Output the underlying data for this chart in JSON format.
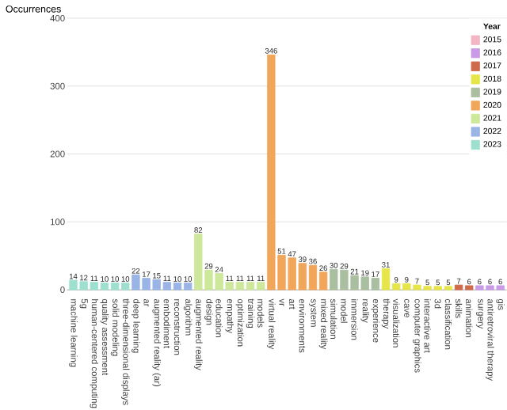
{
  "chart_data": {
    "type": "bar",
    "ylabel": "Occurrences",
    "legend_title": "Year",
    "categories": [
      "machine learning",
      "5g",
      "human-centered computing",
      "quality assessment",
      "solid modeling",
      "three-dimensional displays",
      "deep learning",
      "ar",
      "augmented reality (ar)",
      "embodiment",
      "reconstruction",
      "algorithm",
      "augmented reality",
      "design",
      "education",
      "empathy",
      "optimization",
      "training",
      "models",
      "virtual reality",
      "vr",
      "art",
      "environments",
      "system",
      "mixed reality",
      "simulation",
      "model",
      "immersion",
      "reality",
      "experience",
      "therapy",
      "visualization",
      "cave",
      "computer graphics",
      "interactive art",
      "3d",
      "classification",
      "skills",
      "animation",
      "surgery",
      "antiretroviral therapy",
      "gis"
    ],
    "series": [
      {
        "name": "2015",
        "color": "#f4b6c2",
        "values": [
          null,
          null,
          null,
          null,
          null,
          null,
          null,
          null,
          null,
          null,
          null,
          null,
          null,
          null,
          null,
          null,
          null,
          null,
          null,
          null,
          null,
          null,
          null,
          null,
          null,
          null,
          null,
          null,
          null,
          null,
          null,
          null,
          null,
          null,
          null,
          null,
          null,
          null,
          null,
          null,
          null,
          null
        ]
      },
      {
        "name": "2016",
        "color": "#c99ae6",
        "values": [
          null,
          null,
          null,
          null,
          null,
          null,
          null,
          null,
          null,
          null,
          null,
          null,
          null,
          null,
          null,
          null,
          null,
          null,
          null,
          null,
          null,
          null,
          null,
          null,
          null,
          null,
          null,
          null,
          null,
          null,
          null,
          null,
          null,
          null,
          null,
          null,
          null,
          null,
          null,
          6,
          6,
          6
        ]
      },
      {
        "name": "2017",
        "color": "#cf6a4a",
        "values": [
          null,
          null,
          null,
          null,
          null,
          null,
          null,
          null,
          null,
          null,
          null,
          null,
          null,
          null,
          null,
          null,
          null,
          null,
          null,
          null,
          null,
          null,
          null,
          null,
          null,
          null,
          null,
          null,
          null,
          null,
          null,
          null,
          null,
          null,
          null,
          null,
          null,
          7,
          6,
          null,
          null,
          null
        ]
      },
      {
        "name": "2018",
        "color": "#e6e64a",
        "values": [
          null,
          null,
          null,
          null,
          null,
          null,
          null,
          null,
          null,
          null,
          null,
          null,
          null,
          null,
          null,
          null,
          null,
          null,
          null,
          null,
          null,
          null,
          null,
          null,
          null,
          null,
          null,
          null,
          null,
          null,
          31,
          9,
          9,
          7,
          5,
          5,
          5,
          null,
          null,
          null,
          null,
          null
        ]
      },
      {
        "name": "2019",
        "color": "#a9bfa0",
        "values": [
          null,
          null,
          null,
          null,
          null,
          null,
          null,
          null,
          null,
          null,
          null,
          null,
          null,
          null,
          null,
          null,
          null,
          null,
          null,
          null,
          null,
          null,
          null,
          null,
          null,
          30,
          29,
          21,
          19,
          17,
          null,
          null,
          null,
          null,
          null,
          null,
          null,
          null,
          null,
          null,
          null,
          null
        ]
      },
      {
        "name": "2020",
        "color": "#f2a65a",
        "values": [
          null,
          null,
          null,
          null,
          null,
          null,
          null,
          null,
          null,
          null,
          null,
          null,
          null,
          null,
          null,
          null,
          null,
          null,
          null,
          346,
          51,
          47,
          39,
          36,
          26,
          null,
          null,
          null,
          null,
          null,
          null,
          null,
          null,
          null,
          null,
          null,
          null,
          null,
          null,
          null,
          null,
          null
        ]
      },
      {
        "name": "2021",
        "color": "#cde89a",
        "values": [
          null,
          null,
          null,
          null,
          null,
          null,
          null,
          null,
          null,
          null,
          null,
          null,
          82,
          29,
          24,
          11,
          11,
          11,
          11,
          null,
          null,
          null,
          null,
          null,
          null,
          null,
          null,
          null,
          null,
          null,
          null,
          null,
          null,
          null,
          null,
          null,
          null,
          null,
          null,
          null,
          null,
          null
        ]
      },
      {
        "name": "2022",
        "color": "#9ab4e6",
        "values": [
          null,
          null,
          null,
          null,
          null,
          null,
          22,
          17,
          15,
          11,
          10,
          10,
          null,
          null,
          null,
          null,
          null,
          null,
          null,
          null,
          null,
          null,
          null,
          null,
          null,
          null,
          null,
          null,
          null,
          null,
          null,
          null,
          null,
          null,
          null,
          null,
          null,
          null,
          null,
          null,
          null,
          null
        ]
      },
      {
        "name": "2023",
        "color": "#9ee0d0",
        "values": [
          14,
          12,
          11,
          10,
          10,
          10,
          null,
          null,
          null,
          null,
          null,
          null,
          null,
          null,
          null,
          null,
          null,
          null,
          null,
          null,
          null,
          null,
          null,
          null,
          null,
          null,
          null,
          null,
          null,
          null,
          null,
          null,
          null,
          null,
          null,
          null,
          null,
          null,
          null,
          null,
          null,
          null
        ]
      }
    ],
    "ylim": [
      0,
      400
    ],
    "yticks": [
      0,
      100,
      200,
      300,
      400
    ],
    "grid": "y",
    "legend": "top right",
    "data_labels": true
  }
}
